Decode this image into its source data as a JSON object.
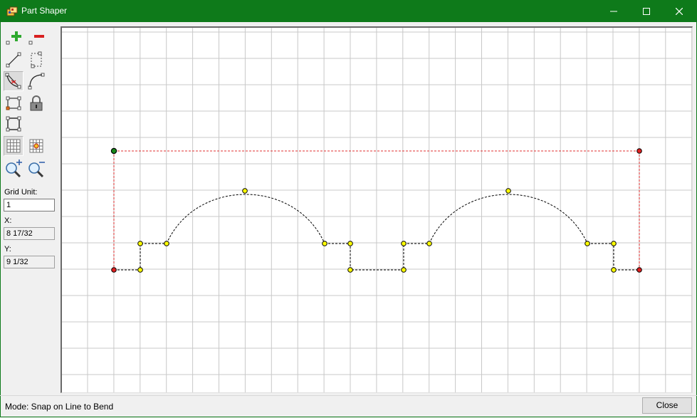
{
  "window": {
    "title": "Part Shaper",
    "controls": [
      "minimize-icon",
      "maximize-icon",
      "close-icon"
    ]
  },
  "toolbar": {
    "buttons": [
      {
        "name": "add-point",
        "icon": "add-point-icon",
        "pressed": false
      },
      {
        "name": "remove-point",
        "icon": "remove-point-icon",
        "pressed": false
      },
      {
        "name": "line-tool",
        "icon": "line-icon",
        "pressed": false
      },
      {
        "name": "select-rect",
        "icon": "select-rect-icon",
        "pressed": false
      },
      {
        "name": "snap-line-to-bend",
        "icon": "snap-line-bend-icon",
        "pressed": true
      },
      {
        "name": "bend-tool",
        "icon": "bend-curve-icon",
        "pressed": false
      },
      {
        "name": "rect-point-tool",
        "icon": "rect-point-icon",
        "pressed": false
      },
      {
        "name": "lock",
        "icon": "lock-icon",
        "pressed": false
      },
      {
        "name": "frame-tool",
        "icon": "frame-icon",
        "pressed": false
      },
      {
        "name": "grid-toggle",
        "icon": "grid-icon",
        "pressed": true
      },
      {
        "name": "snap-grid",
        "icon": "snap-grid-icon",
        "pressed": false
      },
      {
        "name": "zoom-in",
        "icon": "zoom-in-icon",
        "pressed": false
      },
      {
        "name": "zoom-out",
        "icon": "zoom-out-icon",
        "pressed": false
      }
    ],
    "grid_unit_label": "Grid Unit:",
    "grid_unit_value": "1",
    "x_label": "X:",
    "x_value": "8 17/32",
    "y_label": "Y:",
    "y_value": "9 1/32"
  },
  "status": {
    "mode_text": "Mode: Snap on Line to Bend",
    "close_label": "Close"
  },
  "colors": {
    "titlebar": "#0e7a1a",
    "grid_line": "#c8c8c8",
    "bounding_box": "#e03030",
    "shape_line": "#000000",
    "point_fill": "#ffff00",
    "corner_red": "#e02020",
    "origin_green": "#1a8a1a"
  }
}
